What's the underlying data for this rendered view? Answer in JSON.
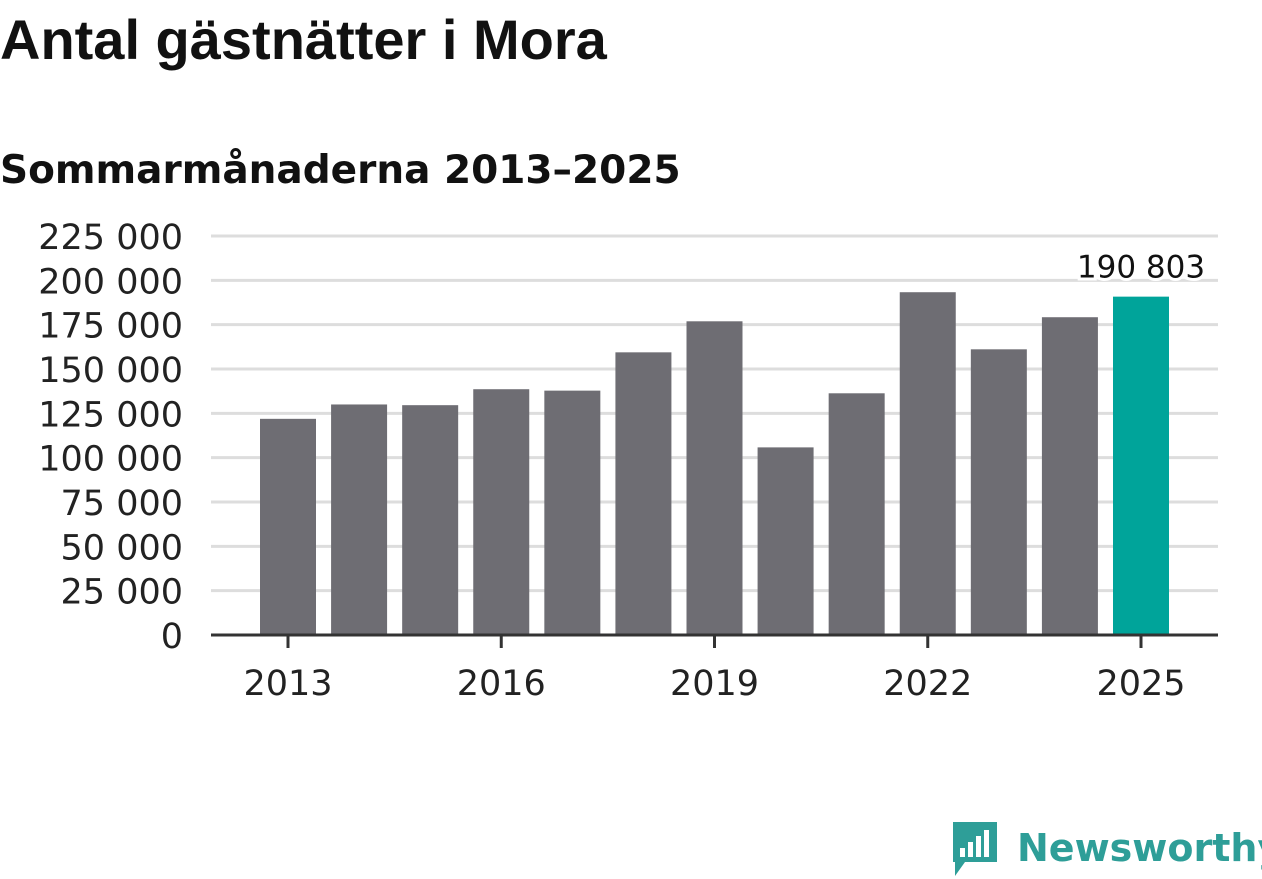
{
  "title": "Antal gästnätter i Mora",
  "subtitle": "Sommarmånaderna 2013–2025",
  "brand": {
    "name": "Newsworthy",
    "color": "#2e9e98",
    "icon": "bar-chart-speech-bubble-icon"
  },
  "colors": {
    "bar": "#6e6d73",
    "highlight": "#00a49a",
    "grid": "#dddddd",
    "axis": "#333333"
  },
  "chart_data": {
    "type": "bar",
    "title": "Antal gästnätter i Mora",
    "subtitle": "Sommarmånaderna 2013–2025",
    "xlabel": "",
    "ylabel": "",
    "categories": [
      "2013",
      "2014",
      "2015",
      "2016",
      "2017",
      "2018",
      "2019",
      "2020",
      "2021",
      "2022",
      "2023",
      "2024",
      "2025"
    ],
    "x_tick_labels": [
      "2013",
      "2016",
      "2019",
      "2022",
      "2025"
    ],
    "values": [
      121900,
      130000,
      129600,
      138600,
      137800,
      159400,
      176900,
      105800,
      136300,
      193300,
      161100,
      179200,
      190803
    ],
    "highlight_index": 12,
    "annotation": {
      "category": "2025",
      "label": "190 803"
    },
    "y_ticks": [
      0,
      25000,
      50000,
      75000,
      100000,
      125000,
      150000,
      175000,
      200000,
      225000
    ],
    "y_tick_labels": [
      "0",
      "25 000",
      "50 000",
      "75 000",
      "100 000",
      "125 000",
      "150 000",
      "175 000",
      "200 000",
      "225 000"
    ],
    "ylim": [
      0,
      225000
    ],
    "grid": true,
    "legend": "none"
  }
}
